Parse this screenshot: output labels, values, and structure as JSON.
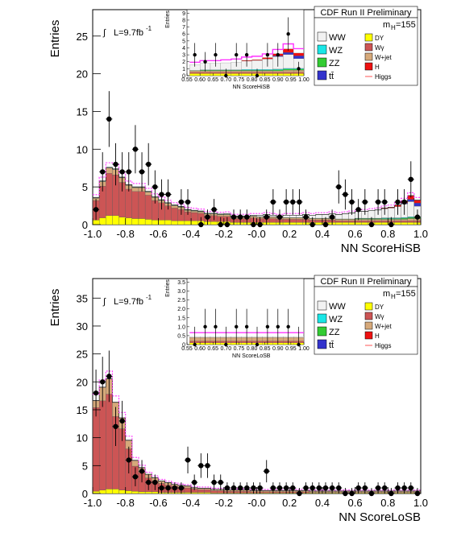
{
  "panels": [
    {
      "id": "top",
      "header": "CDF Run II Preliminary",
      "mass_label": "m",
      "mass_sub": "H",
      "mass_value": "=155",
      "lumi_symbol": "∫",
      "lumi": "L=9.7fb",
      "lumi_exp": "-1",
      "xlabel": "NN ScoreHiSB",
      "ylabel": "Entries",
      "x_ticks": [
        "-1.0",
        "-0.8",
        "-0.6",
        "-0.4",
        "-0.2",
        "-0.0",
        "0.2",
        "0.4",
        "0.6",
        "0.8",
        "1.0"
      ],
      "y_ticks": [
        "0",
        "5",
        "10",
        "15",
        "20",
        "25"
      ],
      "inset": {
        "xlabel": "NN ScoreHiSB",
        "ylabel": "Entries",
        "x_ticks": [
          "0.55",
          "0.60",
          "0.65",
          "0.70",
          "0.75",
          "0.80",
          "0.85",
          "0.90",
          "0.95",
          "1.00"
        ],
        "y_ticks": [
          "0",
          "1",
          "2",
          "3",
          "4",
          "5",
          "6",
          "7",
          "8",
          "9"
        ]
      }
    },
    {
      "id": "bottom",
      "header": "CDF Run II Preliminary",
      "mass_label": "m",
      "mass_sub": "H",
      "mass_value": "=155",
      "lumi_symbol": "∫",
      "lumi": "L=9.7fb",
      "lumi_exp": "-1",
      "xlabel": "NN ScoreLoSB",
      "ylabel": "Entries",
      "x_ticks": [
        "-1.0",
        "-0.8",
        "-0.6",
        "-0.4",
        "-0.2",
        "-0.0",
        "0.2",
        "0.4",
        "0.6",
        "0.8",
        "1.0"
      ],
      "y_ticks": [
        "0",
        "5",
        "10",
        "15",
        "20",
        "25",
        "30",
        "35"
      ],
      "inset": {
        "xlabel": "NN ScoreLoSB",
        "ylabel": "Entries",
        "x_ticks": [
          "0.55",
          "0.60",
          "0.65",
          "0.70",
          "0.75",
          "0.80",
          "0.85",
          "0.90",
          "0.95",
          "1.00"
        ],
        "y_ticks": [
          "0",
          "0.5",
          "1.0",
          "1.5",
          "2.0",
          "2.5",
          "3.0",
          "3.5"
        ]
      }
    }
  ],
  "legend": {
    "left": [
      {
        "label": "WW",
        "color": "#f2f2f2"
      },
      {
        "label": "WZ",
        "color": "#19e6e6"
      },
      {
        "label": "ZZ",
        "color": "#33cc33"
      },
      {
        "label": "tt̄",
        "color": "#3333cc"
      }
    ],
    "right": [
      {
        "label": "DY",
        "color": "#ffff00"
      },
      {
        "label": "Wγ",
        "color": "#cc5555"
      },
      {
        "label": "W+jet",
        "color": "#d6a97a"
      },
      {
        "label": "H",
        "color": "#ee1111"
      },
      {
        "label": "Higgs",
        "color": "#ff5555",
        "line": true
      }
    ]
  },
  "chart_data": [
    {
      "type": "bar",
      "title": "",
      "xlabel": "NN ScoreHiSB",
      "ylabel": "Entries",
      "xlim": [
        -1.0,
        1.0
      ],
      "ylim": [
        0,
        28.5
      ],
      "bin_width": 0.04,
      "stack_series": [
        {
          "name": "DY",
          "color": "#ffff00",
          "values": [
            0.6,
            0.9,
            1.2,
            1.2,
            1.0,
            0.9,
            0.8,
            0.8,
            0.7,
            0.6,
            0.6,
            0.6,
            0.5,
            0.5,
            0.5,
            0.5,
            0.5,
            0.4,
            0.4,
            0.4,
            0.4,
            0.3,
            0.3,
            0.3,
            0.3,
            0.3,
            0.3,
            0.3,
            0.3,
            0.3,
            0.3,
            0.3,
            0.3,
            0.3,
            0.3,
            0.3,
            0.3,
            0.3,
            0.3,
            0.3,
            0.3,
            0.3,
            0.3,
            0.3,
            0.3,
            0.3,
            0.3,
            0.3,
            0.3,
            0.3
          ]
        },
        {
          "name": "Wγ",
          "color": "#cc5555",
          "values": [
            2.6,
            4.2,
            5.6,
            5.4,
            4.6,
            3.8,
            3.6,
            3.6,
            3.2,
            2.6,
            2.3,
            1.9,
            1.7,
            1.5,
            1.2,
            1.1,
            1.0,
            0.8,
            0.8,
            0.7,
            0.7,
            0.5,
            0.5,
            0.5,
            0.6,
            0.5,
            0.6,
            0.5,
            0.4,
            0.4,
            0.4,
            0.4,
            0.4,
            0.3,
            0.3,
            0.3,
            0.3,
            0.2,
            0.2,
            0.2,
            0.2,
            0.2,
            0.2,
            0.2,
            0.2,
            0.2,
            0.2,
            0.2,
            0.2,
            0.2
          ]
        },
        {
          "name": "W+jet",
          "color": "#d6a97a",
          "values": [
            0.3,
            0.6,
            0.7,
            0.7,
            0.6,
            0.5,
            0.5,
            0.5,
            0.4,
            0.4,
            0.3,
            0.3,
            0.3,
            0.3,
            0.2,
            0.2,
            0.2,
            0.2,
            0.2,
            0.2,
            0.2,
            0.2,
            0.2,
            0.2,
            0.2,
            0.2,
            0.2,
            0.2,
            0.2,
            0.2,
            0.2,
            0.2,
            0.2,
            0.2,
            0.2,
            0.2,
            0.2,
            0.2,
            0.2,
            0.2,
            0.2,
            0.2,
            0.2,
            0.2,
            0.2,
            0.2,
            0.2,
            0.2,
            0.3,
            0.3
          ]
        },
        {
          "name": "ZZ",
          "color": "#33cc33",
          "values": [
            0.05,
            0.05,
            0.05,
            0.05,
            0.05,
            0.05,
            0.05,
            0.05,
            0.05,
            0.05,
            0.05,
            0.05,
            0.05,
            0.05,
            0.05,
            0.05,
            0.05,
            0.05,
            0.05,
            0.05,
            0.05,
            0.05,
            0.05,
            0.05,
            0.05,
            0.05,
            0.05,
            0.05,
            0.05,
            0.05,
            0.05,
            0.05,
            0.05,
            0.05,
            0.05,
            0.05,
            0.05,
            0.05,
            0.05,
            0.05,
            0.1,
            0.1,
            0.1,
            0.1,
            0.1,
            0.1,
            0.1,
            0.15,
            0.15,
            0.15
          ]
        },
        {
          "name": "WZ",
          "color": "#19e6e6",
          "values": [
            0,
            0,
            0,
            0,
            0,
            0,
            0,
            0,
            0,
            0,
            0,
            0,
            0,
            0,
            0,
            0,
            0,
            0,
            0,
            0,
            0,
            0,
            0,
            0,
            0,
            0,
            0,
            0,
            0,
            0,
            0,
            0,
            0,
            0,
            0,
            0,
            0,
            0,
            0,
            0,
            0.05,
            0.05,
            0.05,
            0.05,
            0.1,
            0.1,
            0.1,
            0.1,
            0.1,
            0.1
          ]
        },
        {
          "name": "WW",
          "color": "#f2f2f2",
          "values": [
            0.05,
            0.05,
            0.05,
            0.05,
            0.05,
            0.05,
            0.05,
            0.05,
            0.05,
            0.05,
            0.05,
            0.05,
            0.05,
            0.05,
            0.05,
            0.05,
            0.05,
            0.05,
            0.05,
            0.05,
            0.1,
            0.1,
            0.1,
            0.1,
            0.1,
            0.2,
            0.2,
            0.2,
            0.2,
            0.3,
            0.3,
            0.3,
            0.4,
            0.4,
            0.5,
            0.5,
            0.6,
            0.6,
            0.7,
            0.8,
            0.9,
            0.9,
            1.0,
            1.1,
            1.2,
            1.3,
            1.5,
            1.8,
            2.0,
            1.4
          ]
        },
        {
          "name": "tt̄",
          "color": "#3333cc",
          "values": [
            0,
            0,
            0,
            0,
            0,
            0,
            0,
            0,
            0,
            0,
            0,
            0,
            0,
            0,
            0,
            0,
            0,
            0,
            0,
            0,
            0,
            0,
            0,
            0,
            0,
            0,
            0,
            0,
            0,
            0,
            0,
            0,
            0,
            0,
            0,
            0,
            0,
            0,
            0,
            0,
            0,
            0,
            0,
            0,
            0,
            0,
            0,
            0.1,
            0.3,
            0.4
          ]
        },
        {
          "name": "H",
          "color": "#ee1111",
          "values": [
            0,
            0,
            0,
            0,
            0,
            0,
            0,
            0,
            0,
            0,
            0,
            0,
            0,
            0,
            0,
            0,
            0,
            0,
            0,
            0,
            0,
            0,
            0,
            0,
            0,
            0,
            0,
            0,
            0,
            0,
            0,
            0,
            0,
            0,
            0,
            0,
            0,
            0,
            0,
            0,
            0,
            0,
            0,
            0,
            0.1,
            0.1,
            0.2,
            0.3,
            0.5,
            0.4
          ]
        }
      ],
      "data_points": {
        "name": "Data",
        "x": [
          -0.98,
          -0.94,
          -0.9,
          -0.86,
          -0.82,
          -0.78,
          -0.74,
          -0.7,
          -0.66,
          -0.62,
          -0.58,
          -0.54,
          -0.46,
          -0.42,
          -0.34,
          -0.3,
          -0.26,
          -0.22,
          -0.18,
          -0.14,
          -0.1,
          -0.06,
          -0.02,
          0.02,
          0.06,
          0.1,
          0.14,
          0.18,
          0.22,
          0.26,
          0.3,
          0.34,
          0.42,
          0.46,
          0.5,
          0.54,
          0.58,
          0.62,
          0.66,
          0.7,
          0.74,
          0.78,
          0.82,
          0.86,
          0.9,
          0.94,
          0.98
        ],
        "y": [
          2,
          7,
          14,
          8,
          7,
          7,
          10,
          7,
          8,
          5,
          4,
          4,
          3,
          3,
          0,
          1,
          2,
          0,
          0,
          1,
          1,
          1,
          0,
          0,
          1,
          3,
          1,
          3,
          3,
          3,
          1,
          0,
          0,
          1,
          5,
          4,
          3,
          2,
          3,
          0,
          3,
          3,
          0,
          3,
          3,
          6,
          1
        ],
        "err": [
          1.4,
          2.6,
          3.7,
          2.8,
          2.6,
          2.6,
          3.2,
          2.6,
          2.8,
          2.2,
          2.0,
          2.0,
          1.7,
          1.7,
          1.0,
          1.0,
          1.4,
          1.0,
          1.0,
          1.0,
          1.0,
          1.0,
          1.0,
          1.0,
          1.0,
          1.7,
          1.0,
          1.7,
          1.7,
          1.7,
          1.0,
          1.0,
          1.0,
          1.0,
          2.2,
          2.0,
          1.7,
          1.4,
          1.7,
          1.0,
          1.7,
          1.7,
          1.0,
          1.7,
          1.7,
          2.4,
          1.0
        ]
      }
    },
    {
      "type": "bar",
      "title": "",
      "xlabel": "NN ScoreLoSB",
      "ylabel": "Entries",
      "xlim": [
        -1.0,
        1.0
      ],
      "ylim": [
        0,
        38.5
      ],
      "bin_width": 0.04,
      "stack_series": [
        {
          "name": "DY",
          "color": "#ffff00",
          "values": [
            0.4,
            0.6,
            0.8,
            0.8,
            0.6,
            0.5,
            0.4,
            0.3,
            0.3,
            0.3,
            0.2,
            0.2,
            0.2,
            0.2,
            0.2,
            0.2,
            0.2,
            0.2,
            0.1,
            0.1,
            0.1,
            0.1,
            0.1,
            0.1,
            0.1,
            0.1,
            0.1,
            0.1,
            0.1,
            0.1,
            0.1,
            0.1,
            0.1,
            0.1,
            0.1,
            0.1,
            0.1,
            0.1,
            0.1,
            0.1,
            0.1,
            0.1,
            0.1,
            0.1,
            0.1,
            0.1,
            0.1,
            0.1,
            0.1,
            0.1
          ]
        },
        {
          "name": "Wγ",
          "color": "#cc5555",
          "values": [
            15,
            16,
            17,
            13,
            11,
            7.5,
            4.5,
            3.5,
            2.5,
            2,
            1.6,
            1.3,
            1.1,
            0.9,
            0.8,
            0.6,
            0.5,
            0.5,
            0.4,
            0.4,
            0.3,
            0.3,
            0.3,
            0.3,
            0.2,
            0.2,
            0.2,
            0.2,
            0.2,
            0.2,
            0.2,
            0.2,
            0.2,
            0.1,
            0.1,
            0.1,
            0.1,
            0.1,
            0.1,
            0.1,
            0.1,
            0.1,
            0.1,
            0.1,
            0.1,
            0.1,
            0.1,
            0.1,
            0.1,
            0.1
          ]
        },
        {
          "name": "W+jet",
          "color": "#d6a97a",
          "values": [
            1.2,
            2.4,
            2.7,
            2.5,
            1.9,
            1.5,
            1.0,
            0.8,
            0.6,
            0.5,
            0.4,
            0.4,
            0.3,
            0.3,
            0.3,
            0.2,
            0.2,
            0.2,
            0.2,
            0.2,
            0.2,
            0.2,
            0.2,
            0.2,
            0.2,
            0.2,
            0.2,
            0.2,
            0.2,
            0.2,
            0.2,
            0.2,
            0.2,
            0.2,
            0.2,
            0.2,
            0.2,
            0.2,
            0.2,
            0.2,
            0.2,
            0.2,
            0.2,
            0.2,
            0.2,
            0.2,
            0.2,
            0.2,
            0.2,
            0.2
          ]
        },
        {
          "name": "WW",
          "color": "#f2f2f2",
          "values": [
            0.05,
            0.05,
            0.05,
            0.05,
            0.05,
            0.05,
            0.05,
            0.05,
            0.05,
            0.05,
            0.05,
            0.05,
            0.05,
            0.05,
            0.05,
            0.05,
            0.05,
            0.05,
            0.05,
            0.05,
            0.05,
            0.05,
            0.05,
            0.05,
            0.05,
            0.05,
            0.05,
            0.05,
            0.05,
            0.05,
            0.05,
            0.05,
            0.05,
            0.05,
            0.05,
            0.05,
            0.05,
            0.05,
            0.05,
            0.05,
            0.05,
            0.05,
            0.05,
            0.05,
            0.05,
            0.05,
            0.05,
            0.05,
            0.05,
            0.05
          ]
        }
      ],
      "data_points": {
        "name": "Data",
        "x": [
          -0.98,
          -0.94,
          -0.9,
          -0.86,
          -0.82,
          -0.78,
          -0.74,
          -0.7,
          -0.66,
          -0.62,
          -0.58,
          -0.54,
          -0.5,
          -0.46,
          -0.42,
          -0.38,
          -0.34,
          -0.3,
          -0.26,
          -0.22,
          -0.18,
          -0.14,
          -0.1,
          -0.06,
          -0.02,
          0.02,
          0.06,
          0.1,
          0.14,
          0.18,
          0.22,
          0.26,
          0.3,
          0.34,
          0.38,
          0.42,
          0.46,
          0.5,
          0.54,
          0.58,
          0.62,
          0.66,
          0.7,
          0.74,
          0.78,
          0.82,
          0.86,
          0.9,
          0.94,
          0.98
        ],
        "y": [
          18,
          20,
          21,
          12,
          13,
          6,
          3,
          4,
          2,
          2,
          1,
          1,
          1,
          1,
          6,
          2,
          5,
          5,
          2,
          2,
          1,
          1,
          1,
          1,
          1,
          1,
          4,
          1,
          1,
          1,
          1,
          0,
          1,
          1,
          1,
          1,
          1,
          1,
          0,
          0,
          1,
          1,
          0,
          1,
          1,
          0,
          1,
          1,
          1,
          0
        ],
        "err": [
          4.2,
          4.5,
          4.6,
          3.5,
          3.6,
          2.4,
          1.7,
          2.0,
          1.4,
          1.4,
          1.0,
          1.0,
          1.0,
          1.0,
          2.4,
          1.4,
          2.2,
          2.2,
          1.4,
          1.4,
          1.0,
          1.0,
          1.0,
          1.0,
          1.0,
          1.0,
          2.0,
          1.0,
          1.0,
          1.0,
          1.0,
          1.0,
          1.0,
          1.0,
          1.0,
          1.0,
          1.0,
          1.0,
          1.0,
          1.0,
          1.0,
          1.0,
          1.0,
          1.0,
          1.0,
          1.0,
          1.0,
          1.0,
          1.0,
          1.0
        ]
      }
    }
  ]
}
